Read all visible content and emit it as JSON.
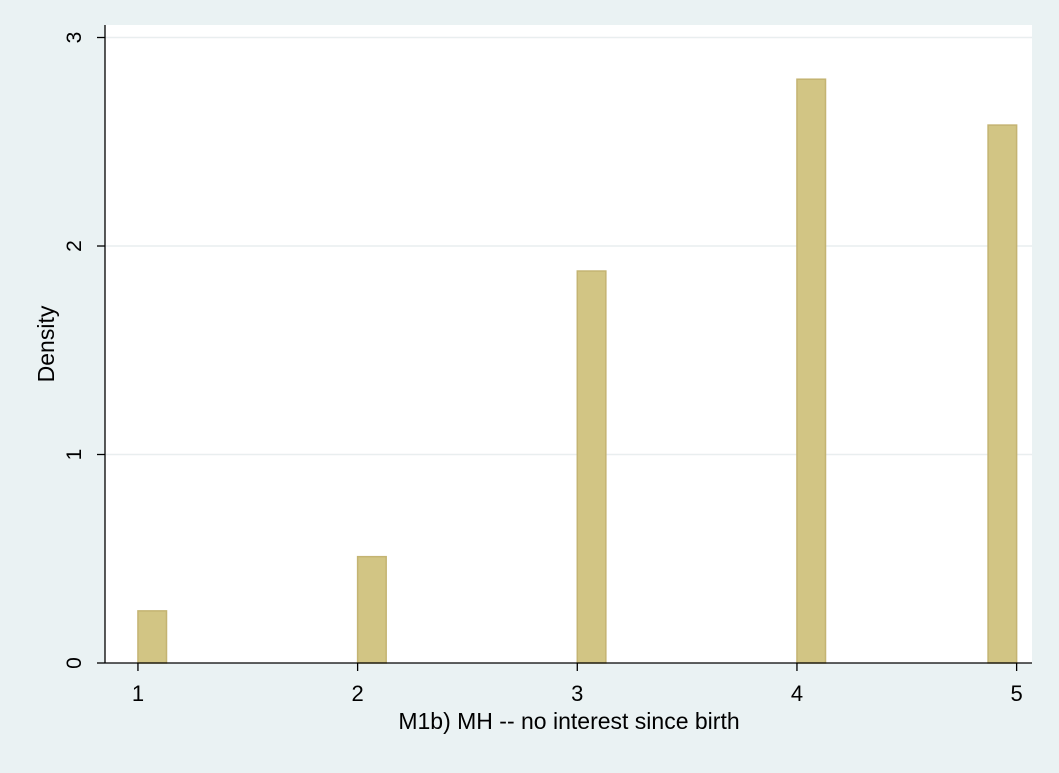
{
  "chart_data": {
    "type": "bar",
    "xlabel": "M1b) MH -- no interest since birth",
    "ylabel": "Density",
    "x_ticks": [
      "1",
      "2",
      "3",
      "4",
      "5"
    ],
    "y_ticks": [
      "0",
      "1",
      "2",
      "3"
    ],
    "xlim": [
      0.85,
      5.07
    ],
    "ylim": [
      0,
      3.06
    ],
    "bars": [
      {
        "x_start": 1.0,
        "x_end": 1.13,
        "value": 0.25
      },
      {
        "x_start": 2.0,
        "x_end": 2.13,
        "value": 0.51
      },
      {
        "x_start": 3.0,
        "x_end": 3.13,
        "value": 1.88
      },
      {
        "x_start": 4.0,
        "x_end": 4.13,
        "value": 2.8
      },
      {
        "x_start": 4.87,
        "x_end": 5.0,
        "value": 2.58
      }
    ],
    "grid": true,
    "bar_color": "#d2c584",
    "bar_edge_color": "#c4b472",
    "background_color": "#eaf2f3",
    "plot_background_color": "#ffffff"
  }
}
